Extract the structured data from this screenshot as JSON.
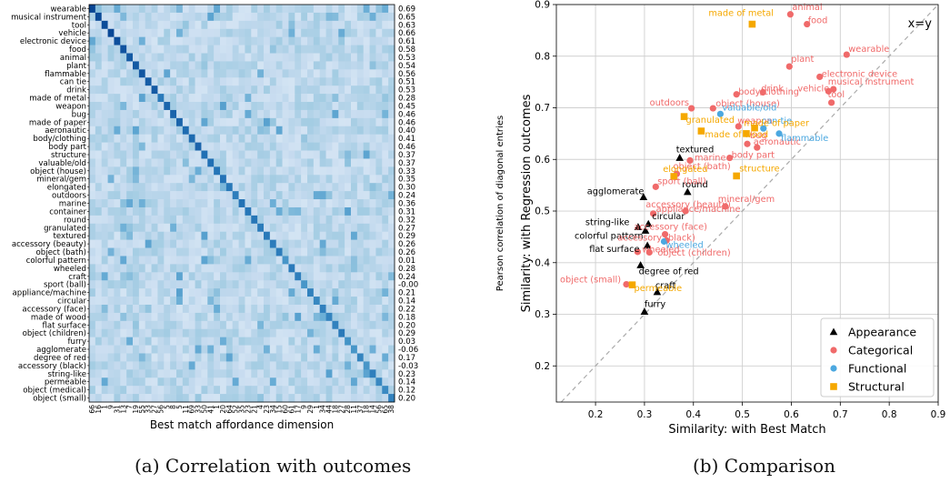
{
  "captions": {
    "a": "(a) Correlation with outcomes",
    "b": "(b) Comparison"
  },
  "chart_data": [
    {
      "type": "heatmap",
      "xlabel": "Best match affordance dimension",
      "ylabel_right": "Pearson correlation of diagonal entries",
      "rows": [
        "wearable",
        "musical instrument",
        "tool",
        "vehicle",
        "electronic device",
        "food",
        "animal",
        "plant",
        "flammable",
        "can tie",
        "drink",
        "made of metal",
        "weapon",
        "bug",
        "made of paper",
        "aeronautic",
        "body/clothing",
        "body part",
        "structure",
        "valuable/old",
        "object (house)",
        "mineral/gem",
        "elongated",
        "outdoors",
        "marine",
        "container",
        "round",
        "granulated",
        "textured",
        "accessory (beauty)",
        "object (bath)",
        "colorful pattern",
        "wheeled",
        "craft",
        "sport (ball)",
        "appliance/machine",
        "circular",
        "accessory (face)",
        "made of wood",
        "flat surface",
        "object (children)",
        "furry",
        "agglomerate",
        "degree of red",
        "accessory (black)",
        "string-like",
        "permeable",
        "object (medical)",
        "object (small)"
      ],
      "x_ticks": [
        "66",
        "16",
        "1",
        "9",
        "31",
        "13",
        "7",
        "19",
        "55",
        "33",
        "27",
        "56",
        "5",
        "8",
        "5",
        "11",
        "69",
        "33",
        "50",
        "41",
        "1",
        "20",
        "64",
        "52",
        "35",
        "23",
        "21",
        "4",
        "23",
        "34",
        "15",
        "60",
        "61",
        "17",
        "9",
        "29",
        "1",
        "34",
        "44",
        "18",
        "27",
        "28",
        "11",
        "37",
        "18",
        "14",
        "56",
        "65",
        "38"
      ],
      "diagonal_r": [
        "0.69",
        "0.65",
        "0.63",
        "0.66",
        "0.61",
        "0.58",
        "0.53",
        "0.54",
        "0.56",
        "0.51",
        "0.53",
        "0.28",
        "0.45",
        "0.46",
        "0.46",
        "0.40",
        "0.41",
        "0.46",
        "0.37",
        "0.37",
        "0.33",
        "0.35",
        "0.30",
        "0.24",
        "0.36",
        "0.31",
        "0.32",
        "0.27",
        "0.29",
        "0.26",
        "0.26",
        "0.01",
        "0.28",
        "0.24",
        "-0.00",
        "0.21",
        "0.14",
        "0.22",
        "0.18",
        "0.20",
        "0.29",
        "0.03",
        "-0.06",
        "0.17",
        "-0.03",
        "0.23",
        "0.14",
        "0.12",
        "0.20"
      ],
      "accent_color": "#08306b"
    },
    {
      "type": "scatter",
      "xlabel": "Similarity: with Best Match",
      "ylabel": "Similarity: with Regression outcomes",
      "xlim": [
        0.12,
        0.9
      ],
      "ylim": [
        0.13,
        0.9
      ],
      "x_ticks": [
        "0.2",
        "0.3",
        "0.4",
        "0.5",
        "0.6",
        "0.7",
        "0.8",
        "0.9"
      ],
      "y_ticks": [
        "0.2",
        "0.3",
        "0.4",
        "0.5",
        "0.6",
        "0.7",
        "0.8",
        "0.9"
      ],
      "diagonal_label": "x=y",
      "grid": true,
      "legend_position": "bottom-right",
      "series": [
        {
          "name": "Appearance",
          "color": "#000000",
          "marker": "triangle",
          "label_color": "#000000",
          "points": [
            {
              "x": 0.372,
              "y": 0.603,
              "label": "textured",
              "dx": -4,
              "dy": -6
            },
            {
              "x": 0.388,
              "y": 0.537,
              "label": "round",
              "dx": -6,
              "dy": -5
            },
            {
              "x": 0.298,
              "y": 0.527,
              "label": "agglomerate",
              "dx": -62,
              "dy": -3
            },
            {
              "x": 0.308,
              "y": 0.475,
              "label": "circular",
              "dx": 4,
              "dy": -5
            },
            {
              "x": 0.287,
              "y": 0.469,
              "label": "string-like",
              "dx": -58,
              "dy": -2
            },
            {
              "x": 0.302,
              "y": 0.462,
              "label": "colorful pattern",
              "dx": -78,
              "dy": 9
            },
            {
              "x": 0.306,
              "y": 0.433,
              "label": "flat surface",
              "dx": -64,
              "dy": 7
            },
            {
              "x": 0.292,
              "y": 0.395,
              "label": "degree of red",
              "dx": -2,
              "dy": 10
            },
            {
              "x": 0.326,
              "y": 0.343,
              "label": "craft",
              "dx": -2,
              "dy": -4
            },
            {
              "x": 0.3,
              "y": 0.305,
              "label": "furry",
              "dx": 0,
              "dy": -5
            }
          ]
        },
        {
          "name": "Categorical",
          "color": "#f06a6a",
          "marker": "circle",
          "label_color": "#f06a6a",
          "points": [
            {
              "x": 0.598,
              "y": 0.881,
              "label": "animal",
              "dx": 2,
              "dy": -5
            },
            {
              "x": 0.632,
              "y": 0.862,
              "label": "food",
              "dx": 1,
              "dy": -1
            },
            {
              "x": 0.713,
              "y": 0.803,
              "label": "wearable",
              "dx": 2,
              "dy": -3
            },
            {
              "x": 0.596,
              "y": 0.78,
              "label": "plant",
              "dx": 2,
              "dy": -5
            },
            {
              "x": 0.658,
              "y": 0.76,
              "label": "electronic device",
              "dx": 2,
              "dy": 0
            },
            {
              "x": 0.686,
              "y": 0.736,
              "label": "musical instrument",
              "dx": -6,
              "dy": -5
            },
            {
              "x": 0.676,
              "y": 0.732,
              "label": "vehicle",
              "dx": -34,
              "dy": 0
            },
            {
              "x": 0.542,
              "y": 0.73,
              "label": "drink",
              "dx": -2,
              "dy": -1
            },
            {
              "x": 0.488,
              "y": 0.726,
              "label": "body/clothing",
              "dx": 2,
              "dy": 0
            },
            {
              "x": 0.682,
              "y": 0.71,
              "label": "tool",
              "dx": -4,
              "dy": -6
            },
            {
              "x": 0.396,
              "y": 0.699,
              "label": "outdoors",
              "dx": -46,
              "dy": -3
            },
            {
              "x": 0.44,
              "y": 0.699,
              "label": "object (house)",
              "dx": 3,
              "dy": -2
            },
            {
              "x": 0.492,
              "y": 0.664,
              "label": "weapon",
              "dx": -1,
              "dy": -3
            },
            {
              "x": 0.51,
              "y": 0.63,
              "label": "bug",
              "dx": 3,
              "dy": -6
            },
            {
              "x": 0.53,
              "y": 0.623,
              "label": "aeronautic",
              "dx": -4,
              "dy": -3
            },
            {
              "x": 0.474,
              "y": 0.603,
              "label": "body part",
              "dx": 2,
              "dy": 0
            },
            {
              "x": 0.393,
              "y": 0.598,
              "label": "marine",
              "dx": 5,
              "dy": 0
            },
            {
              "x": 0.366,
              "y": 0.572,
              "label": "object (bath)",
              "dx": -4,
              "dy": -5
            },
            {
              "x": 0.323,
              "y": 0.547,
              "label": "sport (ball)",
              "dx": 2,
              "dy": -3
            },
            {
              "x": 0.465,
              "y": 0.509,
              "label": "mineral/gem",
              "dx": -8,
              "dy": -5
            },
            {
              "x": 0.384,
              "y": 0.5,
              "label": "accessory (beauty)",
              "dx": -44,
              "dy": -4
            },
            {
              "x": 0.318,
              "y": 0.495,
              "label": "appliance/machine",
              "dx": 3,
              "dy": -2
            },
            {
              "x": 0.342,
              "y": 0.455,
              "label": "accessory (face)",
              "dx": -34,
              "dy": -5
            },
            {
              "x": 0.345,
              "y": 0.443,
              "label": "accessory (black)",
              "dx": -54,
              "dy": 0
            },
            {
              "x": 0.286,
              "y": 0.421,
              "label": "object (children)",
              "dx": 22,
              "dy": 4
            },
            {
              "x": 0.31,
              "y": 0.42,
              "label": "wheeled",
              "dx": -8,
              "dy": 0
            },
            {
              "x": 0.263,
              "y": 0.358,
              "label": "object (small)",
              "dx": -73,
              "dy": -2
            }
          ]
        },
        {
          "name": "Functional",
          "color": "#4ca8e0",
          "marker": "circle",
          "label_color": "#4ca8e0",
          "points": [
            {
              "x": 0.455,
              "y": 0.688,
              "label": "valuable/old",
              "dx": 2,
              "dy": -4
            },
            {
              "x": 0.543,
              "y": 0.66,
              "label": "can tie",
              "dx": -2,
              "dy": -5
            },
            {
              "x": 0.575,
              "y": 0.65,
              "label": "flammable",
              "dx": 2,
              "dy": 8
            },
            {
              "x": 0.34,
              "y": 0.441,
              "label": "wheeled",
              "dx": 2,
              "dy": 7
            }
          ]
        },
        {
          "name": "Structural",
          "color": "#f5a800",
          "marker": "square",
          "label_color": "#f5a800",
          "points": [
            {
              "x": 0.52,
              "y": 0.862,
              "label": "made of metal",
              "dx": -48,
              "dy": -9
            },
            {
              "x": 0.381,
              "y": 0.683,
              "label": "granulated",
              "dx": 2,
              "dy": 7
            },
            {
              "x": 0.525,
              "y": 0.661,
              "label": "made of paper",
              "dx": -12,
              "dy": -2
            },
            {
              "x": 0.508,
              "y": 0.65,
              "label": "",
              "dx": 0,
              "dy": 0
            },
            {
              "x": 0.416,
              "y": 0.655,
              "label": "made of wood",
              "dx": 4,
              "dy": 7
            },
            {
              "x": 0.488,
              "y": 0.568,
              "label": "structure",
              "dx": 3,
              "dy": -5
            },
            {
              "x": 0.36,
              "y": 0.567,
              "label": "elongated",
              "dx": -12,
              "dy": -5
            },
            {
              "x": 0.275,
              "y": 0.357,
              "label": "permeable",
              "dx": 2,
              "dy": 7
            }
          ]
        }
      ]
    }
  ]
}
